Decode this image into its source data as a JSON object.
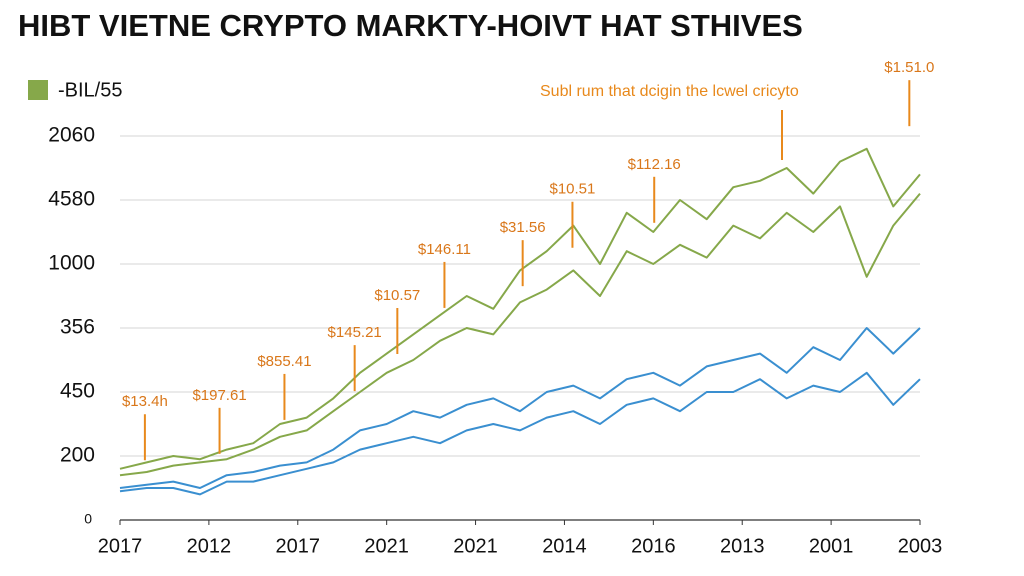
{
  "chart_data": {
    "type": "line",
    "title": "HIBT VIETNE CRYPTO MARKTY-HOIVT HAT STHIVES",
    "note": "Subl rum that dcigin the lcwel cricyto",
    "legend": "upper left",
    "grid": true,
    "xlim": [
      0,
      9
    ],
    "xticks": [
      {
        "value": 0,
        "label": "2017"
      },
      {
        "value": 1,
        "label": "2012"
      },
      {
        "value": 2,
        "label": "2017"
      },
      {
        "value": 3,
        "label": "2021"
      },
      {
        "value": 4,
        "label": "2021"
      },
      {
        "value": 5,
        "label": "2014"
      },
      {
        "value": 6,
        "label": "2016"
      },
      {
        "value": 7,
        "label": "2013"
      },
      {
        "value": 8,
        "label": "2001"
      },
      {
        "value": 9,
        "label": "2003"
      }
    ],
    "ylim": [
      0,
      7
    ],
    "yticks": [
      0,
      {
        "value": 1,
        "label": "200"
      },
      {
        "value": 2,
        "label": "450"
      },
      {
        "value": 3,
        "label": "356"
      },
      {
        "value": 4,
        "label": "1000"
      },
      {
        "value": 5,
        "label": "4580"
      },
      {
        "value": 6,
        "label": "2060"
      }
    ],
    "x": [
      0,
      0.3,
      0.6,
      0.9,
      1.2,
      1.5,
      1.8,
      2.1,
      2.4,
      2.7,
      3.0,
      3.3,
      3.6,
      3.9,
      4.2,
      4.5,
      4.8,
      5.1,
      5.4,
      5.7,
      6.0,
      6.3,
      6.6,
      6.9,
      7.2,
      7.5,
      7.8,
      8.1,
      8.4,
      8.7,
      9.0
    ],
    "series": [
      {
        "name": "-BIL/55",
        "color": "#86a84a",
        "values": [
          0.8,
          0.9,
          1.0,
          0.95,
          1.1,
          1.2,
          1.5,
          1.6,
          1.9,
          2.3,
          2.6,
          2.9,
          3.2,
          3.5,
          3.3,
          3.9,
          4.2,
          4.6,
          4.0,
          4.8,
          4.5,
          5.0,
          4.7,
          5.2,
          5.3,
          5.5,
          5.1,
          5.6,
          5.8,
          4.9,
          5.4
        ]
      },
      {
        "color": "#86a84a",
        "values": [
          0.7,
          0.75,
          0.85,
          0.9,
          0.95,
          1.1,
          1.3,
          1.4,
          1.7,
          2.0,
          2.3,
          2.5,
          2.8,
          3.0,
          2.9,
          3.4,
          3.6,
          3.9,
          3.5,
          4.2,
          4.0,
          4.3,
          4.1,
          4.6,
          4.4,
          4.8,
          4.5,
          4.9,
          3.8,
          4.6,
          5.1
        ]
      },
      {
        "color": "#3a8fd0",
        "values": [
          0.5,
          0.55,
          0.6,
          0.5,
          0.7,
          0.75,
          0.85,
          0.9,
          1.1,
          1.4,
          1.5,
          1.7,
          1.6,
          1.8,
          1.9,
          1.7,
          2.0,
          2.1,
          1.9,
          2.2,
          2.3,
          2.1,
          2.4,
          2.5,
          2.6,
          2.3,
          2.7,
          2.5,
          3.0,
          2.6,
          3.0
        ]
      },
      {
        "color": "#3a8fd0",
        "values": [
          0.45,
          0.5,
          0.5,
          0.4,
          0.6,
          0.6,
          0.7,
          0.8,
          0.9,
          1.1,
          1.2,
          1.3,
          1.2,
          1.4,
          1.5,
          1.4,
          1.6,
          1.7,
          1.5,
          1.8,
          1.9,
          1.7,
          2.0,
          2.0,
          2.2,
          1.9,
          2.1,
          2.0,
          2.3,
          1.8,
          2.2
        ]
      }
    ],
    "annotations": [
      {
        "label": "$13.4h",
        "x": 0.28,
        "y": 1.84
      },
      {
        "label": "$197.61",
        "x": 1.12,
        "y": 1.94
      },
      {
        "label": "$855.41",
        "x": 1.85,
        "y": 2.47
      },
      {
        "label": "$145.21",
        "x": 2.64,
        "y": 2.92
      },
      {
        "label": "$10.57",
        "x": 3.12,
        "y": 3.5
      },
      {
        "label": "$146.11",
        "x": 3.65,
        "y": 4.22
      },
      {
        "label": "$31.56",
        "x": 4.53,
        "y": 4.56
      },
      {
        "label": "$10.51",
        "x": 5.09,
        "y": 5.16
      },
      {
        "label": "$112.16",
        "x": 6.01,
        "y": 5.55
      },
      {
        "label": "$1.51.0",
        "x": 8.88,
        "y": 7.06
      }
    ]
  }
}
